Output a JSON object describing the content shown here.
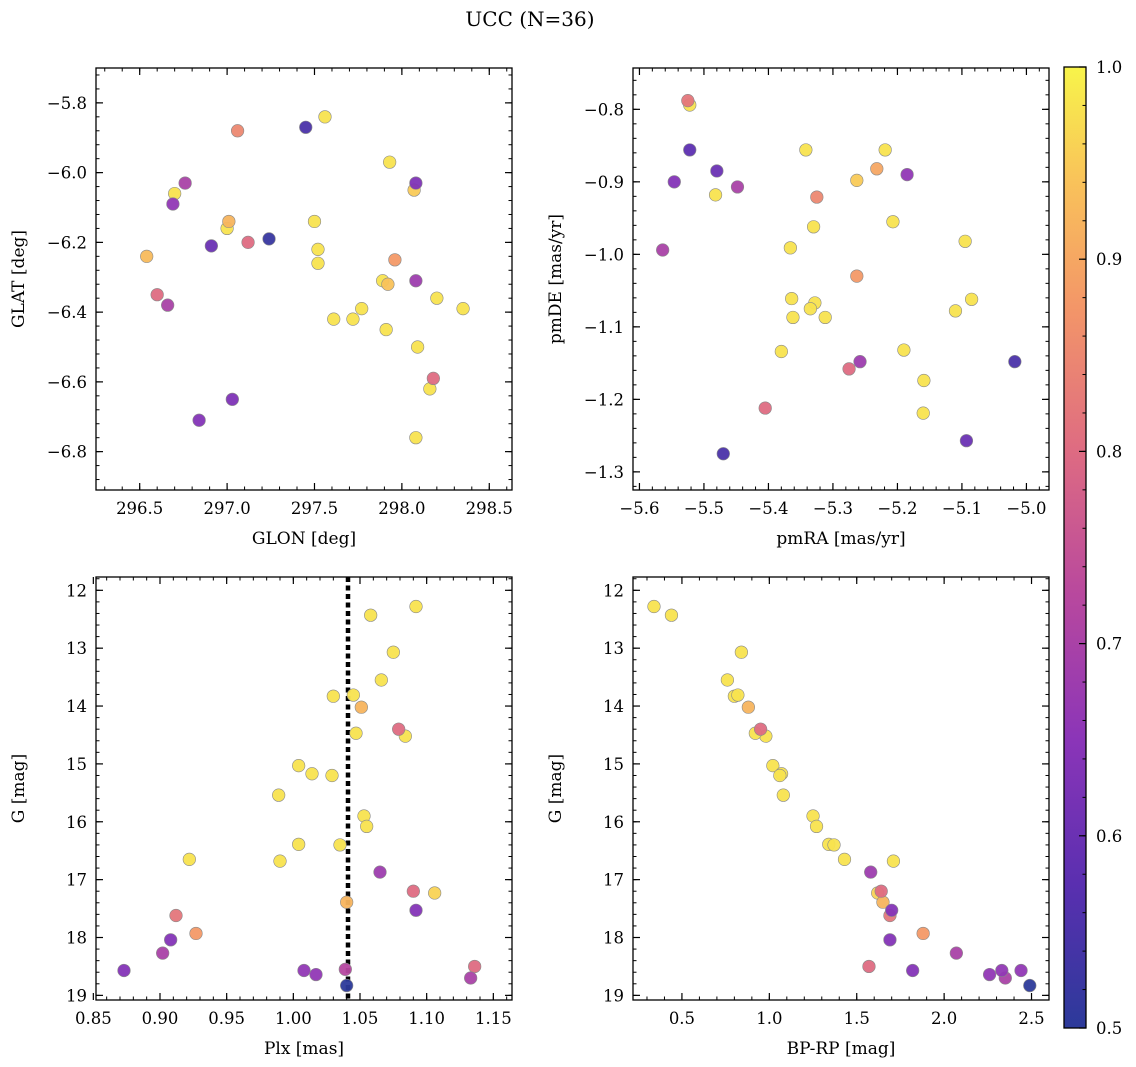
{
  "figure": {
    "title": "UCC (N=36)"
  },
  "colorbar": {
    "range": [
      0.5,
      1.0
    ],
    "ticks": [
      "0.5",
      "0.6",
      "0.7",
      "0.8",
      "0.9",
      "1.0"
    ],
    "colormap": "plasma"
  },
  "chart_data": [
    {
      "id": "p1",
      "type": "scatter",
      "xlabel": "GLON [deg]",
      "ylabel": "GLAT [deg]",
      "xlim": [
        296.25,
        298.63
      ],
      "ylim": [
        -6.91,
        -5.7
      ],
      "xticks": [
        296.5,
        297.0,
        297.5,
        298.0,
        298.5
      ],
      "xticklabels": [
        "296.5",
        "297.0",
        "297.5",
        "298.0",
        "298.5"
      ],
      "yticks": [
        -5.8,
        -6.0,
        -6.2,
        -6.4,
        -6.6,
        -6.8
      ],
      "yticklabels": [
        "−5.8",
        "−6.0",
        "−6.2",
        "−6.4",
        "−6.6",
        "−6.8"
      ],
      "points": [
        [
          297.56,
          -5.84,
          0.98
        ],
        [
          297.45,
          -5.87,
          0.55
        ],
        [
          297.06,
          -5.88,
          0.85
        ],
        [
          297.93,
          -5.97,
          0.98
        ],
        [
          298.08,
          -6.03,
          0.63
        ],
        [
          298.07,
          -6.05,
          0.95
        ],
        [
          296.76,
          -6.03,
          0.7
        ],
        [
          296.7,
          -6.06,
          0.98
        ],
        [
          296.69,
          -6.09,
          0.66
        ],
        [
          297.01,
          -6.14,
          0.92
        ],
        [
          297.5,
          -6.14,
          0.98
        ],
        [
          297.0,
          -6.16,
          0.98
        ],
        [
          296.91,
          -6.21,
          0.6
        ],
        [
          297.12,
          -6.2,
          0.8
        ],
        [
          297.24,
          -6.19,
          0.52
        ],
        [
          297.52,
          -6.22,
          0.98
        ],
        [
          296.54,
          -6.24,
          0.93
        ],
        [
          297.52,
          -6.26,
          0.98
        ],
        [
          297.96,
          -6.25,
          0.88
        ],
        [
          297.89,
          -6.31,
          0.98
        ],
        [
          297.92,
          -6.32,
          0.94
        ],
        [
          298.08,
          -6.31,
          0.68
        ],
        [
          296.6,
          -6.35,
          0.8
        ],
        [
          298.2,
          -6.36,
          0.98
        ],
        [
          296.66,
          -6.38,
          0.7
        ],
        [
          298.35,
          -6.39,
          0.98
        ],
        [
          297.77,
          -6.39,
          0.98
        ],
        [
          297.61,
          -6.42,
          0.98
        ],
        [
          297.72,
          -6.42,
          0.98
        ],
        [
          297.91,
          -6.45,
          0.98
        ],
        [
          298.09,
          -6.5,
          0.98
        ],
        [
          298.18,
          -6.59,
          0.8
        ],
        [
          298.16,
          -6.62,
          0.98
        ],
        [
          297.03,
          -6.65,
          0.63
        ],
        [
          296.84,
          -6.71,
          0.64
        ],
        [
          298.08,
          -6.76,
          0.98
        ]
      ]
    },
    {
      "id": "p2",
      "type": "scatter",
      "xlabel": "pmRA [mas/yr]",
      "ylabel": "pmDE [mas/yr]",
      "xlim": [
        -5.61,
        -4.965
      ],
      "ylim": [
        -1.325,
        -0.743
      ],
      "xticks": [
        -5.6,
        -5.5,
        -5.4,
        -5.3,
        -5.2,
        -5.1,
        -5.0
      ],
      "xticklabels": [
        "−5.6",
        "−5.5",
        "−5.4",
        "−5.3",
        "−5.2",
        "−5.1",
        "−5.0"
      ],
      "yticks": [
        -0.8,
        -0.9,
        -1.0,
        -1.1,
        -1.2,
        -1.3
      ],
      "yticklabels": [
        "−0.8",
        "−0.9",
        "−1.0",
        "−1.1",
        "−1.2",
        "−1.3"
      ],
      "points": [
        [
          -5.525,
          -0.788,
          0.82
        ],
        [
          -5.522,
          -0.794,
          0.98
        ],
        [
          -5.522,
          -0.856,
          0.58
        ],
        [
          -5.546,
          -0.9,
          0.64
        ],
        [
          -5.48,
          -0.885,
          0.6
        ],
        [
          -5.482,
          -0.918,
          0.98
        ],
        [
          -5.448,
          -0.907,
          0.7
        ],
        [
          -5.564,
          -0.994,
          0.7
        ],
        [
          -5.342,
          -0.856,
          0.98
        ],
        [
          -5.219,
          -0.856,
          0.98
        ],
        [
          -5.232,
          -0.882,
          0.9
        ],
        [
          -5.185,
          -0.89,
          0.66
        ],
        [
          -5.263,
          -0.898,
          0.95
        ],
        [
          -5.325,
          -0.921,
          0.85
        ],
        [
          -5.33,
          -0.962,
          0.98
        ],
        [
          -5.207,
          -0.955,
          0.98
        ],
        [
          -5.366,
          -0.991,
          0.98
        ],
        [
          -5.095,
          -0.982,
          0.98
        ],
        [
          -5.263,
          -1.03,
          0.88
        ],
        [
          -5.364,
          -1.061,
          0.98
        ],
        [
          -5.328,
          -1.067,
          0.98
        ],
        [
          -5.335,
          -1.075,
          0.98
        ],
        [
          -5.362,
          -1.087,
          0.98
        ],
        [
          -5.312,
          -1.087,
          0.98
        ],
        [
          -5.085,
          -1.062,
          0.98
        ],
        [
          -5.11,
          -1.078,
          0.98
        ],
        [
          -5.38,
          -1.134,
          0.98
        ],
        [
          -5.19,
          -1.132,
          0.98
        ],
        [
          -5.258,
          -1.148,
          0.68
        ],
        [
          -5.275,
          -1.158,
          0.8
        ],
        [
          -5.018,
          -1.148,
          0.55
        ],
        [
          -5.159,
          -1.174,
          0.98
        ],
        [
          -5.405,
          -1.212,
          0.8
        ],
        [
          -5.16,
          -1.219,
          0.98
        ],
        [
          -5.093,
          -1.257,
          0.6
        ],
        [
          -5.47,
          -1.275,
          0.55
        ]
      ]
    },
    {
      "id": "p3",
      "type": "scatter",
      "xlabel": "Plx [mas]",
      "ylabel": "G [mag]",
      "xlim": [
        0.852,
        1.164
      ],
      "ylim": [
        19.08,
        11.77
      ],
      "xticks": [
        0.85,
        0.9,
        0.95,
        1.0,
        1.05,
        1.1,
        1.15
      ],
      "xticklabels": [
        "0.85",
        "0.90",
        "0.95",
        "1.00",
        "1.05",
        "1.10",
        "1.15"
      ],
      "yticks": [
        12,
        13,
        14,
        15,
        16,
        17,
        18,
        19
      ],
      "yticklabels": [
        "12",
        "13",
        "14",
        "15",
        "16",
        "17",
        "18",
        "19"
      ],
      "vline": 1.041,
      "points": [
        [
          1.092,
          12.28,
          0.98
        ],
        [
          1.058,
          12.43,
          0.98
        ],
        [
          1.075,
          13.07,
          0.98
        ],
        [
          1.066,
          13.55,
          0.98
        ],
        [
          1.03,
          13.83,
          0.98
        ],
        [
          1.045,
          13.81,
          0.98
        ],
        [
          1.051,
          14.02,
          0.92
        ],
        [
          1.079,
          14.4,
          0.8
        ],
        [
          1.084,
          14.52,
          0.98
        ],
        [
          1.047,
          14.47,
          0.98
        ],
        [
          1.004,
          15.03,
          0.98
        ],
        [
          1.014,
          15.17,
          0.98
        ],
        [
          1.029,
          15.2,
          0.98
        ],
        [
          0.989,
          15.54,
          0.98
        ],
        [
          1.053,
          15.9,
          0.98
        ],
        [
          1.055,
          16.08,
          0.98
        ],
        [
          1.004,
          16.39,
          0.98
        ],
        [
          1.035,
          16.4,
          0.98
        ],
        [
          0.922,
          16.65,
          0.98
        ],
        [
          0.99,
          16.68,
          0.98
        ],
        [
          1.065,
          16.87,
          0.68
        ],
        [
          1.09,
          17.2,
          0.8
        ],
        [
          1.106,
          17.23,
          0.96
        ],
        [
          1.04,
          17.39,
          0.92
        ],
        [
          1.092,
          17.53,
          0.64
        ],
        [
          0.912,
          17.62,
          0.82
        ],
        [
          0.927,
          17.93,
          0.88
        ],
        [
          0.908,
          18.04,
          0.64
        ],
        [
          0.902,
          18.27,
          0.7
        ],
        [
          1.136,
          18.5,
          0.8
        ],
        [
          0.873,
          18.57,
          0.64
        ],
        [
          1.008,
          18.57,
          0.66
        ],
        [
          1.017,
          18.64,
          0.66
        ],
        [
          1.039,
          18.55,
          0.72
        ],
        [
          1.133,
          18.7,
          0.7
        ],
        [
          1.04,
          18.83,
          0.5
        ]
      ]
    },
    {
      "id": "p4",
      "type": "scatter",
      "xlabel": "BP-RP [mag]",
      "ylabel": "G [mag]",
      "xlim": [
        0.22,
        2.6
      ],
      "ylim": [
        19.08,
        11.77
      ],
      "xticks": [
        0.5,
        1.0,
        1.5,
        2.0,
        2.5
      ],
      "xticklabels": [
        "0.5",
        "1.0",
        "1.5",
        "2.0",
        "2.5"
      ],
      "yticks": [
        12,
        13,
        14,
        15,
        16,
        17,
        18,
        19
      ],
      "yticklabels": [
        "12",
        "13",
        "14",
        "15",
        "16",
        "17",
        "18",
        "19"
      ],
      "points": [
        [
          0.34,
          12.28,
          0.98
        ],
        [
          0.44,
          12.43,
          0.98
        ],
        [
          0.84,
          13.07,
          0.98
        ],
        [
          0.76,
          13.55,
          0.98
        ],
        [
          0.8,
          13.83,
          0.98
        ],
        [
          0.82,
          13.81,
          0.98
        ],
        [
          0.88,
          14.02,
          0.92
        ],
        [
          0.95,
          14.4,
          0.8
        ],
        [
          0.98,
          14.52,
          0.98
        ],
        [
          0.92,
          14.47,
          0.98
        ],
        [
          1.02,
          15.03,
          0.98
        ],
        [
          1.07,
          15.17,
          0.98
        ],
        [
          1.06,
          15.2,
          0.98
        ],
        [
          1.08,
          15.54,
          0.98
        ],
        [
          1.25,
          15.9,
          0.98
        ],
        [
          1.27,
          16.08,
          0.98
        ],
        [
          1.34,
          16.39,
          0.98
        ],
        [
          1.37,
          16.4,
          0.98
        ],
        [
          1.43,
          16.65,
          0.98
        ],
        [
          1.71,
          16.68,
          0.98
        ],
        [
          1.58,
          16.87,
          0.68
        ],
        [
          1.64,
          17.2,
          0.8
        ],
        [
          1.62,
          17.23,
          0.96
        ],
        [
          1.65,
          17.39,
          0.92
        ],
        [
          1.7,
          17.53,
          0.64
        ],
        [
          1.69,
          17.62,
          0.82
        ],
        [
          1.88,
          17.93,
          0.88
        ],
        [
          1.69,
          18.04,
          0.64
        ],
        [
          2.07,
          18.27,
          0.7
        ],
        [
          1.57,
          18.5,
          0.8
        ],
        [
          1.82,
          18.57,
          0.64
        ],
        [
          2.33,
          18.57,
          0.66
        ],
        [
          2.44,
          18.57,
          0.66
        ],
        [
          2.26,
          18.64,
          0.66
        ],
        [
          2.35,
          18.7,
          0.7
        ],
        [
          2.49,
          18.83,
          0.5
        ]
      ]
    }
  ]
}
